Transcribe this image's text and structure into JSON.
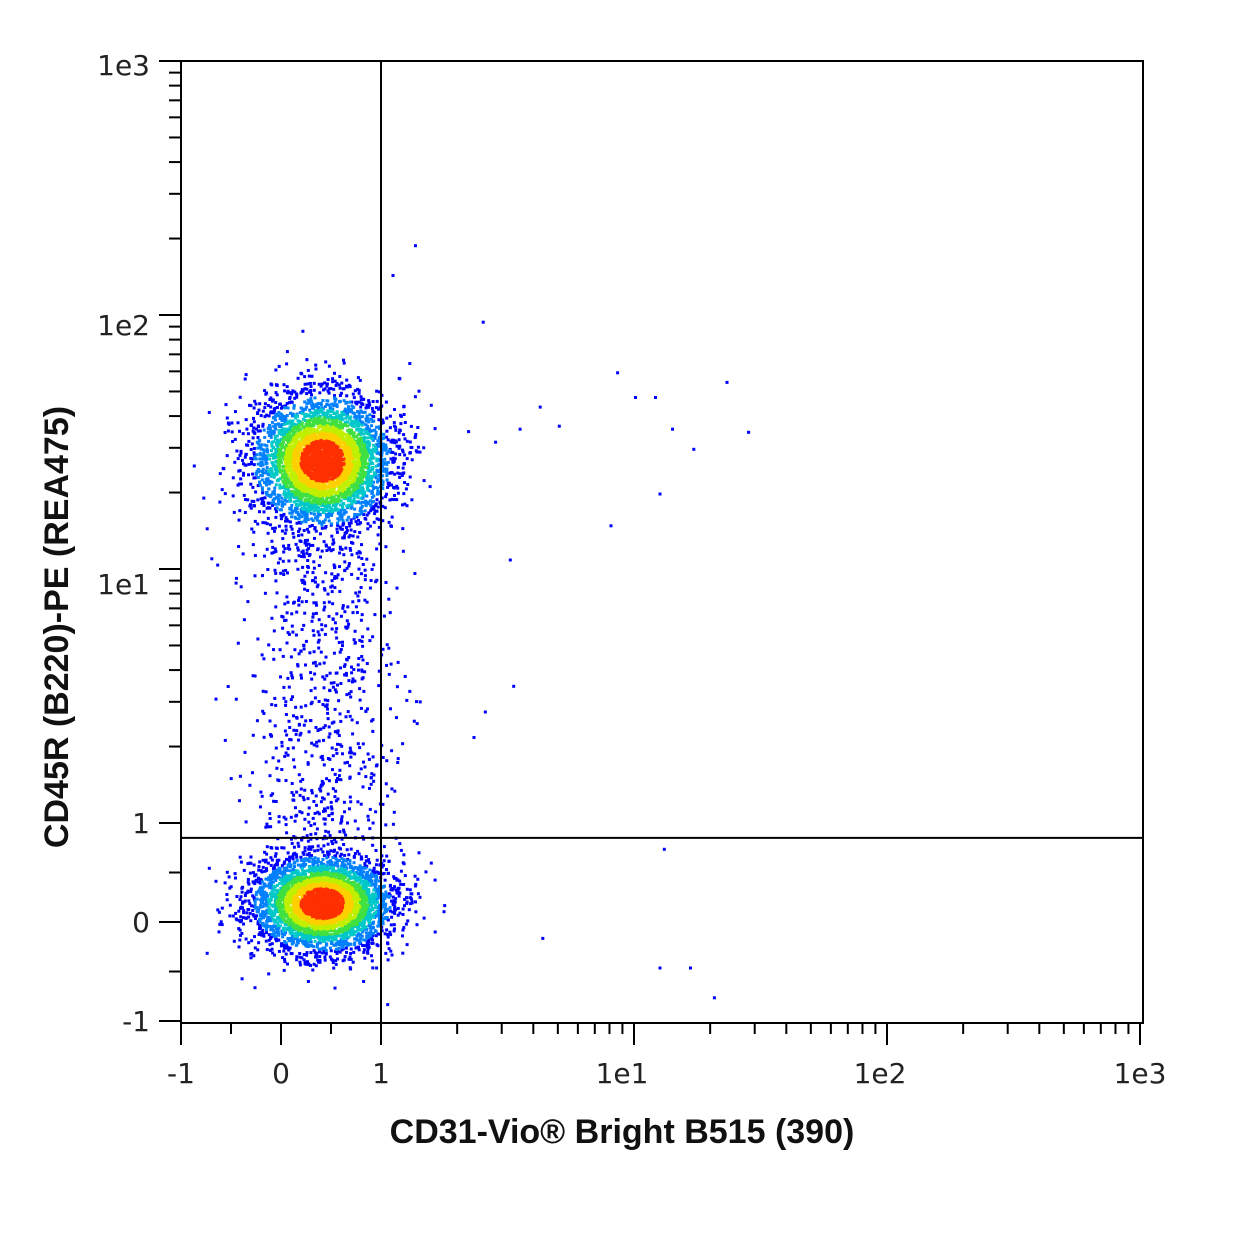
{
  "chart_data": {
    "type": "scatter",
    "title": "",
    "xlabel": "CD31-Vio® Bright B515 (390)",
    "ylabel": "CD45R (B220)-PE (REA475)",
    "x_scale": "biexponential",
    "y_scale": "biexponential",
    "xlim": [
      -1,
      1000
    ],
    "ylim": [
      -1,
      1000
    ],
    "x_ticks": [
      "-1",
      "0",
      "1",
      "1e1",
      "1e2",
      "1e3"
    ],
    "y_ticks": [
      "1e3",
      "1e2",
      "1e1",
      "1",
      "0",
      "-1"
    ],
    "grid": false,
    "quadrant_gates": {
      "x": 1,
      "y": 0.85
    },
    "colormap": [
      "#0000ff",
      "#0080ff",
      "#00c8c8",
      "#40e040",
      "#c0f000",
      "#ffd000",
      "#ff3000"
    ],
    "populations": [
      {
        "center_x": 0.4,
        "center_y": 27,
        "density": "high"
      },
      {
        "center_x": 0.4,
        "center_y": 0.2,
        "density": "high"
      }
    ],
    "sparse_events": [
      {
        "x": 8.5,
        "y": 60
      },
      {
        "x": 23,
        "y": 55
      },
      {
        "x": 10,
        "y": 48
      },
      {
        "x": 12,
        "y": 48
      },
      {
        "x": 14,
        "y": 36
      },
      {
        "x": 28,
        "y": 35
      },
      {
        "x": 5,
        "y": 37
      },
      {
        "x": 17,
        "y": 30
      },
      {
        "x": 3.5,
        "y": 36
      },
      {
        "x": 2.8,
        "y": 32
      },
      {
        "x": 12.5,
        "y": 20
      },
      {
        "x": 3.2,
        "y": 11
      },
      {
        "x": 3.3,
        "y": 3.5
      },
      {
        "x": 2.3,
        "y": 2.2
      },
      {
        "x": 13,
        "y": 0.75
      },
      {
        "x": 4.3,
        "y": -0.15
      },
      {
        "x": 12.5,
        "y": -0.45
      },
      {
        "x": 16.5,
        "y": -0.45
      },
      {
        "x": 20.5,
        "y": -0.75
      },
      {
        "x": 1.35,
        "y": 190
      },
      {
        "x": 1.1,
        "y": 145
      },
      {
        "x": 2.5,
        "y": 95
      },
      {
        "x": 4.2,
        "y": 44
      },
      {
        "x": 8,
        "y": 15
      }
    ]
  }
}
